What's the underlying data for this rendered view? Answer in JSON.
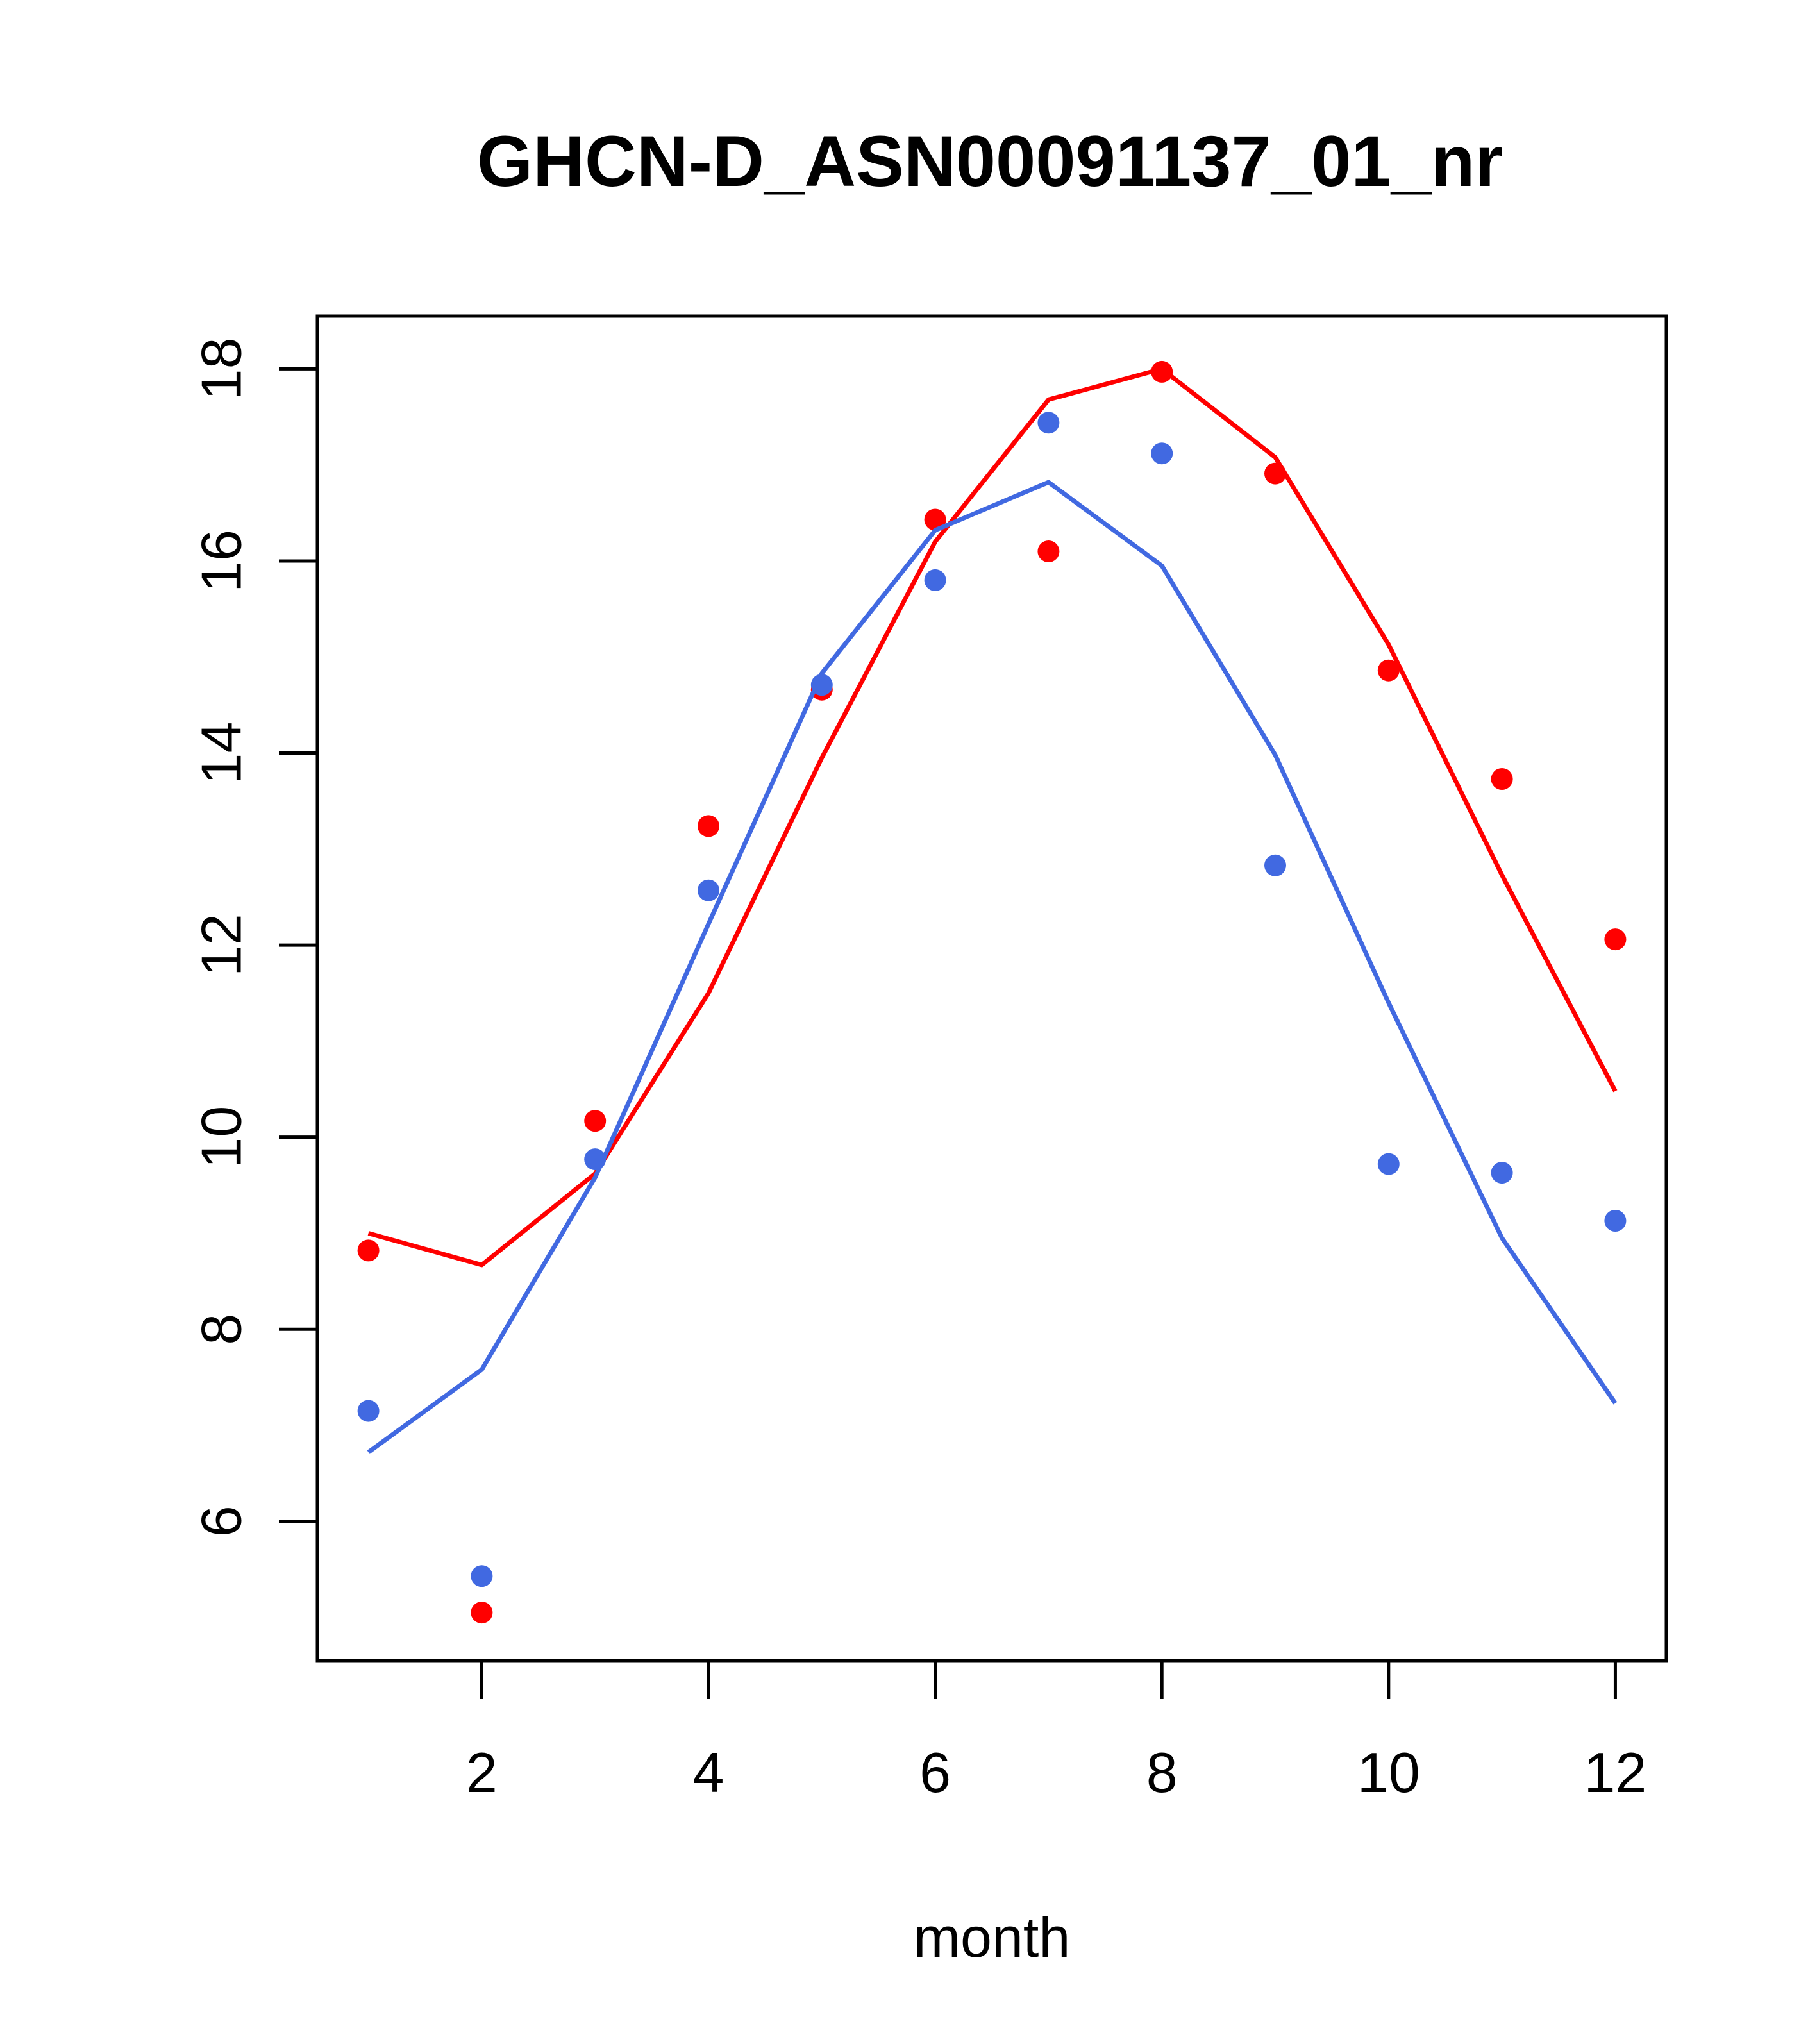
{
  "chart_data": {
    "type": "scatter",
    "title": "GHCN-D_ASN00091137_01_nr",
    "xlabel": "month",
    "ylabel": "",
    "xlim": [
      0.55,
      12.45
    ],
    "ylim": [
      4.55,
      18.55
    ],
    "x_ticks": [
      2,
      4,
      6,
      8,
      10,
      12
    ],
    "y_ticks": [
      6,
      8,
      10,
      12,
      14,
      16,
      18
    ],
    "grid": false,
    "series": [
      {
        "color": "#ff0000",
        "points": {
          "x": [
            1,
            2,
            3,
            4,
            5,
            6,
            7,
            8,
            9,
            10,
            11,
            12
          ],
          "y": [
            8.82,
            5.05,
            10.17,
            13.24,
            14.66,
            16.43,
            16.1,
            17.97,
            16.91,
            14.86,
            13.73,
            12.06
          ]
        },
        "line": {
          "x": [
            1,
            2,
            3,
            4,
            5,
            6,
            7,
            8,
            9,
            10,
            11,
            12
          ],
          "y": [
            9.0,
            8.67,
            9.62,
            11.5,
            13.95,
            16.2,
            17.68,
            18.0,
            17.08,
            15.13,
            12.73,
            10.48
          ]
        }
      },
      {
        "color": "#4169e1",
        "points": {
          "x": [
            1,
            2,
            3,
            4,
            5,
            6,
            7,
            8,
            9,
            10,
            11,
            12
          ],
          "y": [
            7.15,
            5.43,
            9.77,
            12.57,
            14.71,
            15.8,
            17.44,
            17.12,
            12.83,
            9.72,
            9.63,
            9.13
          ]
        },
        "line": {
          "x": [
            1,
            2,
            3,
            4,
            5,
            6,
            7,
            8,
            9,
            10,
            11,
            12
          ],
          "y": [
            6.72,
            7.58,
            9.58,
            12.22,
            14.83,
            16.32,
            16.82,
            15.95,
            13.98,
            11.4,
            8.95,
            7.23
          ]
        }
      }
    ]
  }
}
